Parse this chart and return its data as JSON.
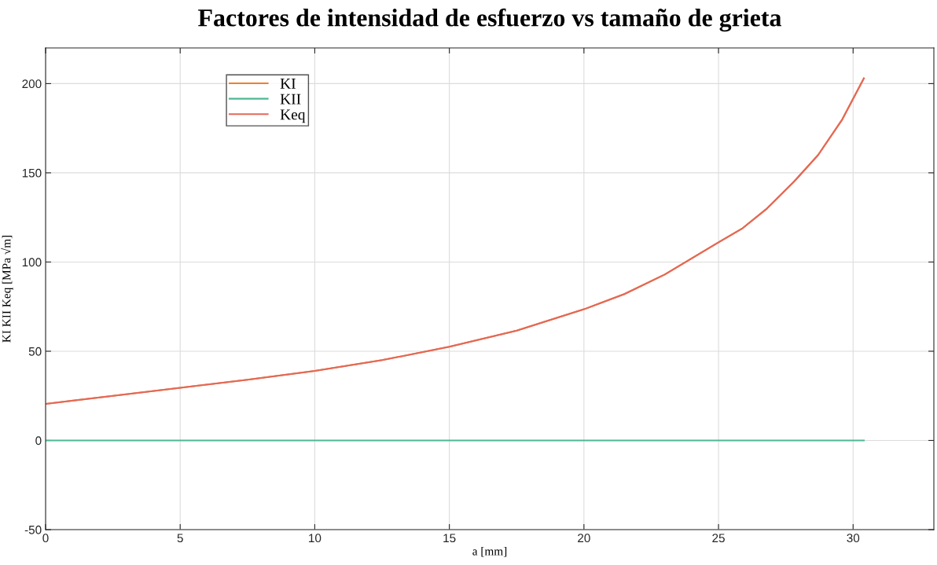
{
  "chart_data": {
    "type": "line",
    "title": "Factores de intensidad de esfuerzo vs tamaño de grieta",
    "xlabel": "a [mm]",
    "ylabel": "KI KII Keq [MPa √m]",
    "x": [
      0,
      2.5,
      5,
      7.5,
      10,
      12.5,
      15,
      17.5,
      20,
      21.5,
      23,
      25,
      25.9,
      26.8,
      27.8,
      28.7,
      29.6,
      30.4
    ],
    "series": [
      {
        "name": "KI",
        "color": "#f07f2b",
        "values": [
          20.5,
          25,
          29.5,
          34,
          39,
          45,
          52.5,
          61.5,
          73.5,
          82,
          93,
          111,
          119,
          130,
          145,
          160,
          180,
          203
        ]
      },
      {
        "name": "KII",
        "color": "#4db891",
        "values": [
          0,
          0,
          0,
          0,
          0,
          0,
          0,
          0,
          0,
          0,
          0,
          0,
          0,
          0,
          0,
          0,
          0,
          0
        ]
      },
      {
        "name": "Keq",
        "color": "#e3685a",
        "values": [
          20.5,
          25,
          29.5,
          34,
          39,
          45,
          52.5,
          61.5,
          73.5,
          82,
          93,
          111,
          119,
          130,
          145,
          160,
          180,
          203
        ]
      }
    ],
    "xlim": [
      0,
      33
    ],
    "ylim": [
      -50,
      220
    ],
    "xticks": [
      0,
      5,
      10,
      15,
      20,
      25,
      30
    ],
    "yticks": [
      -50,
      0,
      50,
      100,
      150,
      200
    ],
    "grid": true,
    "legend": "top left",
    "marker": "none",
    "line_style": "solid"
  }
}
